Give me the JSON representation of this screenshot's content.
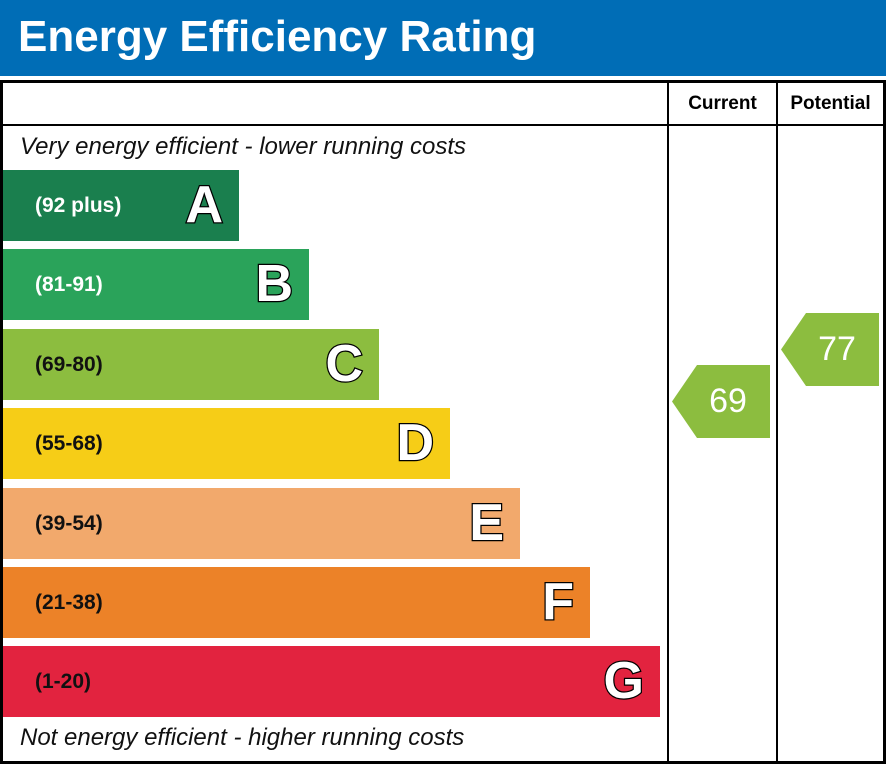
{
  "title": "Energy Efficiency Rating",
  "columns": {
    "current": "Current",
    "potential": "Potential"
  },
  "captions": {
    "top": "Very energy efficient - lower running costs",
    "bottom": "Not energy efficient - higher running costs"
  },
  "chart_data": {
    "type": "bar",
    "title": "Energy Efficiency Rating",
    "categories": [
      "A",
      "B",
      "C",
      "D",
      "E",
      "F",
      "G"
    ],
    "bands": [
      {
        "letter": "A",
        "range": "(92 plus)",
        "color": "#1a7f4e",
        "text_color": "#ffffff"
      },
      {
        "letter": "B",
        "range": "(81-91)",
        "color": "#2aa35a",
        "text_color": "#ffffff"
      },
      {
        "letter": "C",
        "range": "(69-80)",
        "color": "#8cbd3f",
        "text_color": "#111111"
      },
      {
        "letter": "D",
        "range": "(55-68)",
        "color": "#f6cd17",
        "text_color": "#111111"
      },
      {
        "letter": "E",
        "range": "(39-54)",
        "color": "#f2a96c",
        "text_color": "#111111"
      },
      {
        "letter": "F",
        "range": "(21-38)",
        "color": "#ec8228",
        "text_color": "#111111"
      },
      {
        "letter": "G",
        "range": "(1-20)",
        "color": "#e2233f",
        "text_color": "#111111"
      }
    ],
    "current": {
      "value": 69,
      "band": "C",
      "color": "#8cbd3f"
    },
    "potential": {
      "value": 77,
      "band": "C",
      "color": "#8cbd3f"
    }
  }
}
